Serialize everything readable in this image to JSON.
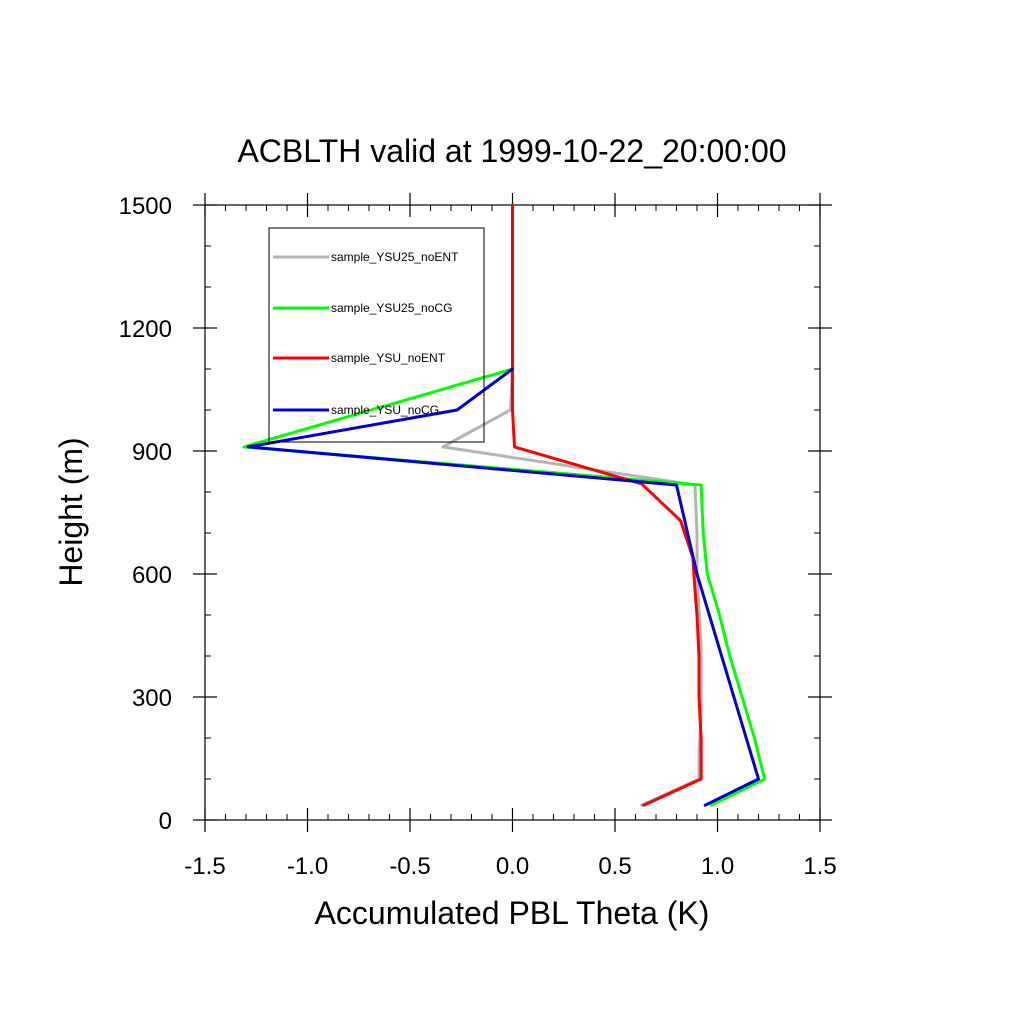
{
  "chart_data": {
    "type": "line",
    "title": "ACBLTH valid at 1999-10-22_20:00:00",
    "xlabel": "Accumulated PBL Theta (K)",
    "ylabel": "Height (m)",
    "xlim": [
      -1.5,
      1.5
    ],
    "ylim": [
      0,
      1500
    ],
    "xticks": [
      "-1.5",
      "-1.0",
      "-0.5",
      "0.0",
      "0.5",
      "1.0",
      "1.5"
    ],
    "yticks": [
      "0",
      "300",
      "600",
      "900",
      "1200",
      "1500"
    ],
    "grid": false,
    "legend_position": "top-left",
    "series": [
      {
        "name": "sample_YSU25_noENT",
        "color": "#b4b4b4",
        "x": [
          0.63,
          0.91,
          0.91,
          0.92,
          0.92,
          0.92,
          0.91,
          0.9,
          0.9,
          0.89,
          -0.34,
          -0.01,
          0.0,
          0.0,
          0.0,
          0.0
        ],
        "y": [
          36,
          100,
          170,
          250,
          330,
          420,
          510,
          600,
          700,
          817,
          910,
          1000,
          1100,
          1200,
          1350,
          1500
        ]
      },
      {
        "name": "sample_YSU25_noCG",
        "color": "#00ff00",
        "x": [
          0.97,
          1.23,
          1.18,
          1.12,
          1.06,
          1.01,
          0.95,
          0.93,
          0.92,
          -1.31,
          -0.0,
          0.0,
          0.0,
          0.0,
          0.0
        ],
        "y": [
          36,
          100,
          200,
          300,
          400,
          500,
          600,
          700,
          817,
          910,
          1100,
          1150,
          1250,
          1350,
          1500
        ]
      },
      {
        "name": "sample_YSU_noENT",
        "color": "#ff0000",
        "x": [
          0.64,
          0.92,
          0.92,
          0.91,
          0.91,
          0.9,
          0.89,
          0.88,
          0.82,
          0.63,
          0.01,
          0.0,
          0.0,
          0.0,
          0.0
        ],
        "y": [
          36,
          100,
          200,
          300,
          400,
          500,
          560,
          640,
          730,
          820,
          910,
          1000,
          1100,
          1200,
          1500
        ]
      },
      {
        "name": "sample_YSU_noCG",
        "color": "#0000d0",
        "x": [
          0.94,
          1.2,
          1.14,
          1.08,
          1.02,
          0.96,
          0.9,
          0.8,
          -1.29,
          -0.27,
          -0.0
        ],
        "y": [
          36,
          100,
          200,
          300,
          400,
          500,
          600,
          817,
          910,
          1000,
          1100
        ]
      }
    ]
  }
}
